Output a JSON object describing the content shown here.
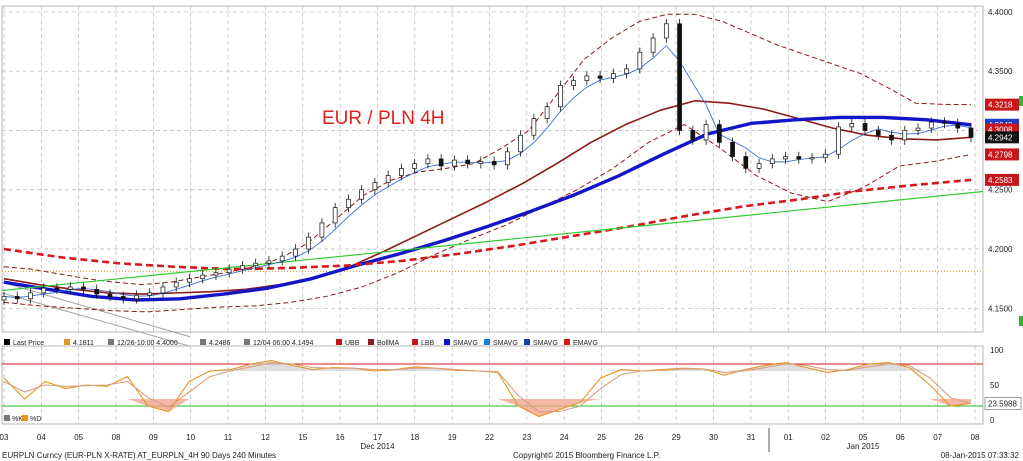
{
  "chart_data": [
    {
      "type": "candlestick",
      "title": "EUR / PLN 4H",
      "instrument": "EURPLN Curncy",
      "ylim": [
        4.13,
        4.405
      ],
      "y_ticks": [
        "4.1500",
        "4.2000",
        "4.2500",
        "4.3000",
        "4.3500",
        "4.4000"
      ],
      "x_labels": [
        "03",
        "04",
        "05",
        "08",
        "09",
        "10",
        "11",
        "12",
        "15",
        "16",
        "17",
        "18",
        "19",
        "22",
        "23",
        "24",
        "25",
        "26",
        "29",
        "30",
        "31",
        "01",
        "02",
        "05",
        "06",
        "07",
        "08"
      ],
      "month_labels": [
        "Dec 2014",
        "Jan 2015"
      ],
      "series": [
        {
          "name": "Last Price",
          "color": "#000000",
          "values": [
            4.16,
            4.158,
            4.163,
            4.167,
            4.166,
            4.168,
            4.166,
            4.162,
            4.16,
            4.158,
            4.161,
            4.163,
            4.168,
            4.172,
            4.175,
            4.178,
            4.18,
            4.183,
            4.186,
            4.188,
            4.19,
            4.194,
            4.2,
            4.21,
            4.222,
            4.235,
            4.242,
            4.25,
            4.256,
            4.262,
            4.268,
            4.272,
            4.276,
            4.27,
            4.275,
            4.272,
            4.274,
            4.271,
            4.282,
            4.296,
            4.31,
            4.32,
            4.338,
            4.342,
            4.346,
            4.344,
            4.348,
            4.352,
            4.366,
            4.378,
            4.39,
            4.3,
            4.292,
            4.305,
            4.29,
            4.278,
            4.268,
            4.272,
            4.276,
            4.278,
            4.276,
            4.277,
            4.28,
            4.303,
            4.306,
            4.3,
            4.296,
            4.292,
            4.3,
            4.302,
            4.307,
            4.306,
            4.302,
            4.2942
          ]
        },
        {
          "name": "UBB",
          "color": "#8b1a1a",
          "values": [
            4.185,
            4.183,
            4.179,
            4.175,
            4.172,
            4.17,
            4.172,
            4.176,
            4.18,
            4.185,
            4.192,
            4.205,
            4.225,
            4.245,
            4.258,
            4.265,
            4.268,
            4.272,
            4.285,
            4.3,
            4.33,
            4.36,
            4.378,
            4.392,
            4.398,
            4.398,
            4.392,
            4.382,
            4.372,
            4.364,
            4.356,
            4.348,
            4.336,
            4.323,
            4.322,
            4.3218
          ]
        },
        {
          "name": "BollMA",
          "color": "#8b1a1a",
          "values": [
            4.175,
            4.17,
            4.166,
            4.163,
            4.162,
            4.163,
            4.164,
            4.166,
            4.17,
            4.176,
            4.185,
            4.198,
            4.212,
            4.226,
            4.24,
            4.255,
            4.272,
            4.29,
            4.305,
            4.317,
            4.325,
            4.323,
            4.318,
            4.31,
            4.302,
            4.296,
            4.293,
            4.292,
            4.2942
          ]
        },
        {
          "name": "LBB",
          "color": "#8b1a1a",
          "values": [
            4.155,
            4.152,
            4.15,
            4.148,
            4.147,
            4.149,
            4.151,
            4.152,
            4.155,
            4.16,
            4.168,
            4.18,
            4.195,
            4.208,
            4.22,
            4.235,
            4.25,
            4.268,
            4.29,
            4.305,
            4.285,
            4.262,
            4.247,
            4.24,
            4.252,
            4.27,
            4.274,
            4.2798
          ]
        },
        {
          "name": "SMAVG",
          "color": "#1515c8",
          "values": [
            4.172,
            4.166,
            4.16,
            4.157,
            4.158,
            4.162,
            4.167,
            4.175,
            4.186,
            4.196,
            4.207,
            4.219,
            4.232,
            4.246,
            4.262,
            4.28,
            4.297,
            4.306,
            4.309,
            4.311,
            4.311,
            4.309,
            4.3048
          ]
        },
        {
          "name": "EMAVG",
          "color": "#d8191c",
          "values": [
            4.2,
            4.193,
            4.188,
            4.185,
            4.183,
            4.184,
            4.186,
            4.19,
            4.196,
            4.203,
            4.211,
            4.219,
            4.228,
            4.236,
            4.242,
            4.249,
            4.254,
            4.2583
          ]
        },
        {
          "name": "Trend",
          "color": "#33cc33",
          "values": [
            4.165,
            4.2485
          ]
        }
      ],
      "price_badges": [
        {
          "value": "4.3218",
          "color": "#c4171a"
        },
        {
          "value": "4.3048",
          "color": "#1e3cc8"
        },
        {
          "value": "4.3008",
          "color": "#c4171a"
        },
        {
          "value": "4.2942",
          "color": "#111111"
        },
        {
          "value": "4.2798",
          "color": "#c4171a"
        },
        {
          "value": "4.2583",
          "color": "#c4171a"
        }
      ],
      "legend": [
        {
          "label": "Last Price",
          "color": "#000000"
        },
        {
          "label": "4.1811",
          "color": "#e69520"
        },
        {
          "label": "12/26-10:00 4.4000",
          "color": "#777777"
        },
        {
          "label": "4.2486",
          "color": "#777777"
        },
        {
          "label": "12/04 06:00 4.1494",
          "color": "#777777"
        },
        {
          "label": "UBB",
          "color": "#c4171a"
        },
        {
          "label": "BollMA",
          "color": "#8b1a1a"
        },
        {
          "label": "LBB",
          "color": "#c4171a"
        },
        {
          "label": "SMAVG",
          "color": "#1515c8"
        },
        {
          "label": "SMAVG",
          "color": "#1e7fd8"
        },
        {
          "label": "SMAVG",
          "color": "#1540a8"
        },
        {
          "label": "EMAVG",
          "color": "#d8191c"
        }
      ]
    },
    {
      "type": "line",
      "ylim": [
        0,
        100
      ],
      "y_ticks": [
        "100",
        "50",
        "0"
      ],
      "levels": [
        80,
        20
      ],
      "series": [
        {
          "name": "%K",
          "color": "#e69520",
          "values": [
            60,
            30,
            55,
            45,
            50,
            48,
            62,
            20,
            12,
            55,
            70,
            72,
            80,
            85,
            78,
            72,
            75,
            74,
            70,
            72,
            76,
            74,
            71,
            70,
            68,
            20,
            5,
            15,
            25,
            60,
            72,
            70,
            72,
            74,
            73,
            64,
            72,
            78,
            82,
            75,
            68,
            72,
            80,
            82,
            75,
            50,
            20,
            23.5988
          ]
        },
        {
          "name": "%D",
          "color": "#d8a080",
          "values": [
            55,
            40,
            50,
            48,
            49,
            50,
            55,
            32,
            18,
            40,
            62,
            70,
            76,
            82,
            80,
            75,
            74,
            74,
            72,
            72,
            74,
            74,
            72,
            70,
            69,
            35,
            12,
            12,
            20,
            45,
            65,
            70,
            71,
            73,
            73,
            68,
            70,
            75,
            80,
            78,
            72,
            71,
            76,
            80,
            78,
            60,
            32,
            23.5988
          ]
        }
      ],
      "badge": "23.5988",
      "legend": [
        {
          "label": "%K"
        },
        {
          "label": "%D"
        }
      ]
    }
  ],
  "footer": {
    "left": "EURPLN Curncy (EUR-PLN X-RATE) AT_EURPLN_4H 90 Days 240 Minutes",
    "center": "Copyright© 2015 Bloomberg Finance L.P.",
    "right": "08-Jan-2015 07:33:32"
  },
  "colors": {
    "grid": "#b8b8b8",
    "background": "#ffffff",
    "title": "#e0201c"
  }
}
